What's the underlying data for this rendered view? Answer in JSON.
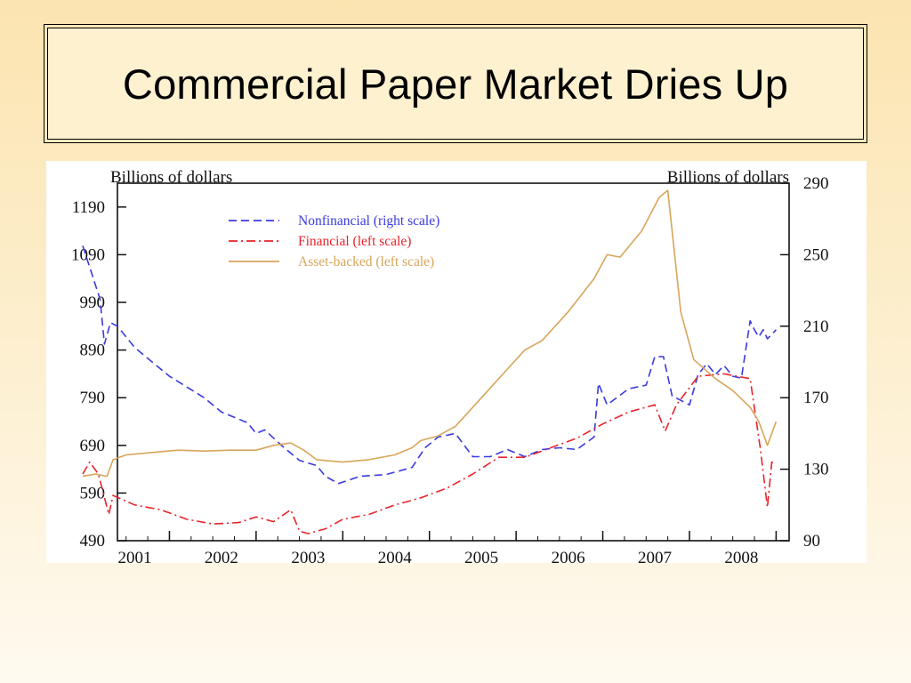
{
  "slide": {
    "title": "Commercial Paper Market Dries Up"
  },
  "colors": {
    "nonfinancial": "#3a3adf",
    "financial": "#e8232a",
    "asset_backed": "#d8a55a"
  },
  "chart_data": {
    "type": "line",
    "left_axis_label": "Billions of dollars",
    "right_axis_label": "Billions of dollars",
    "x_ticks": [
      "2001",
      "2002",
      "2003",
      "2004",
      "2005",
      "2006",
      "2007",
      "2008"
    ],
    "xlim": [
      2001.0,
      2008.75
    ],
    "left_ylim": [
      490,
      1240
    ],
    "right_ylim": [
      90,
      290
    ],
    "left_ticks": [
      490,
      590,
      690,
      790,
      890,
      990,
      1090,
      1190
    ],
    "right_ticks": [
      90,
      130,
      170,
      210,
      250,
      290
    ],
    "legend_position": "top-left",
    "series": [
      {
        "name": "Nonfinancial (right scale)",
        "axis": "right",
        "style": "dashed",
        "points": [
          [
            2001.0,
            255
          ],
          [
            2001.1,
            240
          ],
          [
            2001.2,
            225
          ],
          [
            2001.25,
            200
          ],
          [
            2001.32,
            212
          ],
          [
            2001.4,
            210
          ],
          [
            2001.6,
            198
          ],
          [
            2001.8,
            190
          ],
          [
            2002.0,
            182
          ],
          [
            2002.2,
            176
          ],
          [
            2002.4,
            170
          ],
          [
            2002.6,
            162
          ],
          [
            2002.8,
            158
          ],
          [
            2002.9,
            156
          ],
          [
            2003.0,
            150
          ],
          [
            2003.1,
            152
          ],
          [
            2003.3,
            143
          ],
          [
            2003.5,
            135
          ],
          [
            2003.7,
            132
          ],
          [
            2003.8,
            126
          ],
          [
            2003.95,
            122
          ],
          [
            2004.2,
            126
          ],
          [
            2004.5,
            127
          ],
          [
            2004.8,
            131
          ],
          [
            2004.95,
            142
          ],
          [
            2005.1,
            148
          ],
          [
            2005.3,
            150
          ],
          [
            2005.5,
            137
          ],
          [
            2005.7,
            137
          ],
          [
            2005.9,
            141
          ],
          [
            2006.1,
            137
          ],
          [
            2006.3,
            141
          ],
          [
            2006.5,
            142
          ],
          [
            2006.7,
            141
          ],
          [
            2006.9,
            148
          ],
          [
            2006.95,
            178
          ],
          [
            2007.05,
            166
          ],
          [
            2007.3,
            175
          ],
          [
            2007.5,
            177
          ],
          [
            2007.6,
            193
          ],
          [
            2007.7,
            193
          ],
          [
            2007.8,
            171
          ],
          [
            2008.0,
            166
          ],
          [
            2008.1,
            183
          ],
          [
            2008.2,
            189
          ],
          [
            2008.3,
            183
          ],
          [
            2008.4,
            188
          ],
          [
            2008.5,
            182
          ],
          [
            2008.6,
            181
          ],
          [
            2008.7,
            213
          ],
          [
            2008.75,
            208
          ],
          [
            2008.8,
            204
          ],
          [
            2008.85,
            208
          ],
          [
            2008.9,
            203
          ],
          [
            2009.0,
            208
          ]
        ]
      },
      {
        "name": "Financial (left scale)",
        "axis": "left",
        "style": "dashdot",
        "points": [
          [
            2001.0,
            630
          ],
          [
            2001.08,
            655
          ],
          [
            2001.18,
            630
          ],
          [
            2001.3,
            545
          ],
          [
            2001.35,
            585
          ],
          [
            2001.6,
            565
          ],
          [
            2001.9,
            555
          ],
          [
            2002.2,
            535
          ],
          [
            2002.5,
            525
          ],
          [
            2002.8,
            528
          ],
          [
            2003.0,
            540
          ],
          [
            2003.2,
            530
          ],
          [
            2003.4,
            555
          ],
          [
            2003.5,
            510
          ],
          [
            2003.6,
            505
          ],
          [
            2003.8,
            515
          ],
          [
            2004.0,
            535
          ],
          [
            2004.3,
            545
          ],
          [
            2004.6,
            565
          ],
          [
            2004.9,
            580
          ],
          [
            2005.2,
            600
          ],
          [
            2005.5,
            630
          ],
          [
            2005.8,
            665
          ],
          [
            2006.1,
            665
          ],
          [
            2006.4,
            685
          ],
          [
            2006.7,
            705
          ],
          [
            2007.0,
            735
          ],
          [
            2007.3,
            760
          ],
          [
            2007.6,
            775
          ],
          [
            2007.72,
            720
          ],
          [
            2007.85,
            775
          ],
          [
            2008.1,
            835
          ],
          [
            2008.4,
            840
          ],
          [
            2008.7,
            830
          ],
          [
            2008.82,
            680
          ],
          [
            2008.9,
            560
          ],
          [
            2008.95,
            655
          ],
          [
            2009.0,
            650
          ]
        ]
      },
      {
        "name": "Asset-backed (left scale)",
        "axis": "left",
        "style": "solid",
        "points": [
          [
            2001.0,
            625
          ],
          [
            2001.15,
            630
          ],
          [
            2001.28,
            625
          ],
          [
            2001.35,
            660
          ],
          [
            2001.5,
            670
          ],
          [
            2001.8,
            675
          ],
          [
            2002.1,
            680
          ],
          [
            2002.4,
            678
          ],
          [
            2002.7,
            680
          ],
          [
            2003.0,
            680
          ],
          [
            2003.2,
            690
          ],
          [
            2003.4,
            695
          ],
          [
            2003.55,
            680
          ],
          [
            2003.7,
            660
          ],
          [
            2004.0,
            655
          ],
          [
            2004.3,
            660
          ],
          [
            2004.6,
            670
          ],
          [
            2004.8,
            685
          ],
          [
            2004.9,
            700
          ],
          [
            2005.1,
            710
          ],
          [
            2005.3,
            730
          ],
          [
            2005.6,
            790
          ],
          [
            2005.9,
            850
          ],
          [
            2006.1,
            890
          ],
          [
            2006.3,
            910
          ],
          [
            2006.6,
            970
          ],
          [
            2006.9,
            1040
          ],
          [
            2007.05,
            1090
          ],
          [
            2007.2,
            1085
          ],
          [
            2007.45,
            1140
          ],
          [
            2007.65,
            1210
          ],
          [
            2007.75,
            1225
          ],
          [
            2007.9,
            970
          ],
          [
            2008.05,
            870
          ],
          [
            2008.3,
            830
          ],
          [
            2008.5,
            805
          ],
          [
            2008.7,
            770
          ],
          [
            2008.8,
            740
          ],
          [
            2008.9,
            690
          ],
          [
            2009.0,
            740
          ]
        ]
      }
    ]
  }
}
